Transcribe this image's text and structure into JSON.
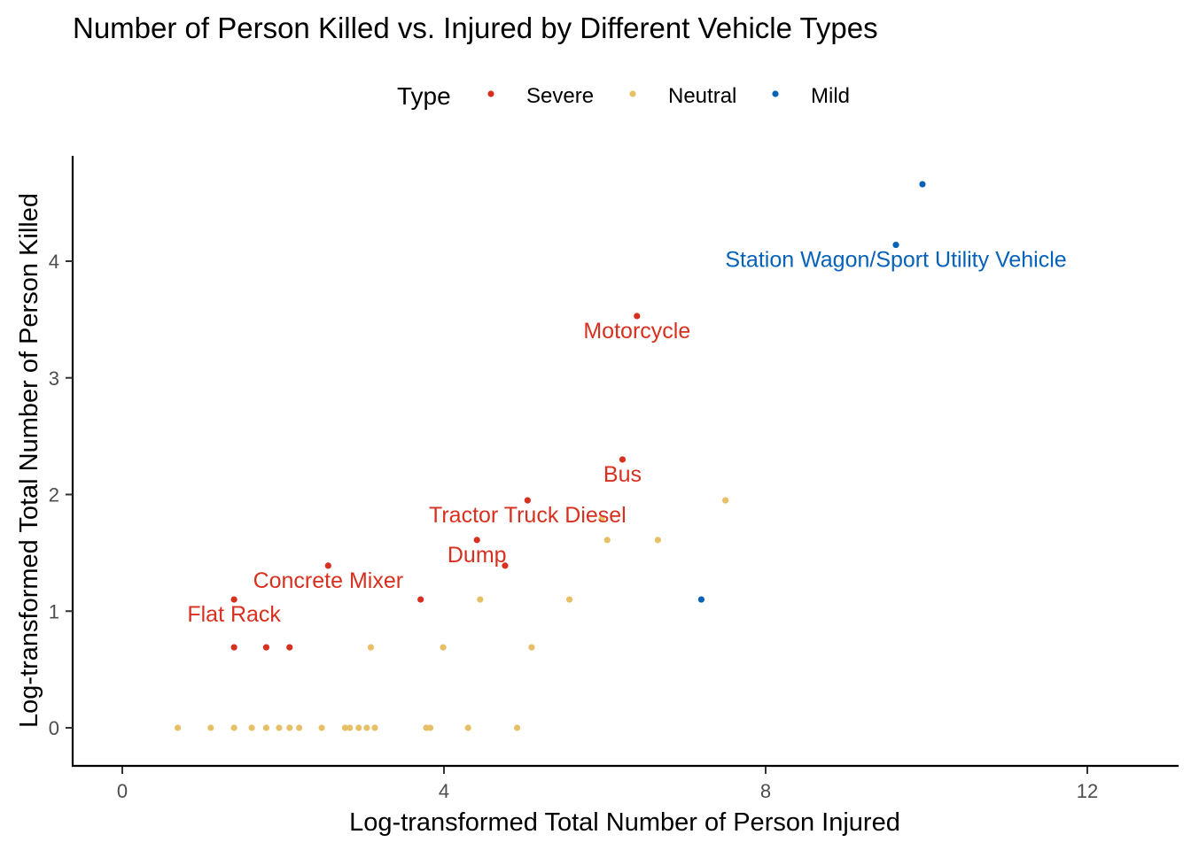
{
  "colors": {
    "Severe": "#d7301f",
    "Neutral": "#e6bf66",
    "Mild": "#0661b9"
  },
  "chart_data": {
    "type": "scatter",
    "title": "Number of Person Killed vs. Injured by Different Vehicle Types",
    "xlabel": "Log-transformed Total Number of Person Injured",
    "ylabel": "Log-transformed Total Number of Person Killed",
    "xlim": [
      -0.6,
      13.1
    ],
    "ylim": [
      -0.33,
      4.9
    ],
    "x_ticks": [
      0,
      4,
      8,
      12
    ],
    "y_ticks": [
      0,
      1,
      2,
      3,
      4
    ],
    "grid": false,
    "legend": {
      "title": "Type",
      "position": "top",
      "items": [
        "Severe",
        "Neutral",
        "Mild"
      ]
    },
    "series": [
      {
        "name": "Severe",
        "points": [
          [
            1.39,
            1.1
          ],
          [
            1.39,
            0.69
          ],
          [
            1.79,
            0.69
          ],
          [
            2.08,
            0.69
          ],
          [
            2.56,
            1.39
          ],
          [
            3.71,
            1.1
          ],
          [
            4.41,
            1.61
          ],
          [
            4.76,
            1.39
          ],
          [
            5.04,
            1.95
          ],
          [
            6.22,
            2.3
          ],
          [
            6.4,
            3.53
          ]
        ]
      },
      {
        "name": "Neutral",
        "points": [
          [
            0.69,
            0
          ],
          [
            1.1,
            0
          ],
          [
            1.39,
            0
          ],
          [
            1.61,
            0
          ],
          [
            1.79,
            0
          ],
          [
            1.95,
            0
          ],
          [
            2.08,
            0
          ],
          [
            2.2,
            0
          ],
          [
            2.48,
            0
          ],
          [
            2.77,
            0
          ],
          [
            2.83,
            0
          ],
          [
            2.94,
            0
          ],
          [
            3.04,
            0
          ],
          [
            3.14,
            0
          ],
          [
            3.09,
            0.69
          ],
          [
            3.78,
            0
          ],
          [
            3.83,
            0
          ],
          [
            3.99,
            0.69
          ],
          [
            4.3,
            0
          ],
          [
            4.45,
            1.1
          ],
          [
            4.91,
            0
          ],
          [
            5.09,
            0.69
          ],
          [
            5.56,
            1.1
          ],
          [
            5.96,
            1.79
          ],
          [
            6.03,
            1.61
          ],
          [
            6.66,
            1.61
          ],
          [
            7.5,
            1.95
          ]
        ]
      },
      {
        "name": "Mild",
        "points": [
          [
            7.2,
            1.1
          ],
          [
            9.62,
            4.14
          ],
          [
            9.95,
            4.66
          ]
        ]
      }
    ],
    "annotations": [
      {
        "text": "Station Wagon/Sport Utility Vehicle",
        "x": 9.62,
        "y": 4.14,
        "series": "Mild"
      },
      {
        "text": "Motorcycle",
        "x": 6.4,
        "y": 3.53,
        "series": "Severe"
      },
      {
        "text": "Bus",
        "x": 6.22,
        "y": 2.3,
        "series": "Severe"
      },
      {
        "text": "Tractor Truck Diesel",
        "x": 5.04,
        "y": 1.95,
        "series": "Severe"
      },
      {
        "text": "Dump",
        "x": 4.41,
        "y": 1.61,
        "series": "Severe"
      },
      {
        "text": "Concrete Mixer",
        "x": 2.56,
        "y": 1.39,
        "series": "Severe"
      },
      {
        "text": "Flat Rack",
        "x": 1.39,
        "y": 1.1,
        "series": "Severe"
      }
    ]
  }
}
